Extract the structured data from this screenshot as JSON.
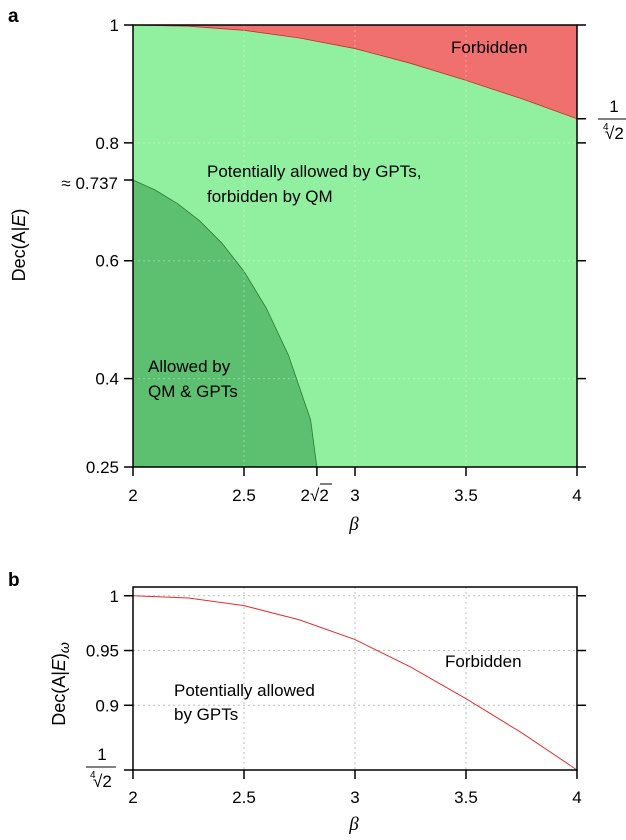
{
  "chart_data": [
    {
      "panel": "a",
      "type": "area",
      "xlabel_symbol": "β",
      "ylabel_main": "Dec(A|",
      "ylabel_var": "E",
      "ylabel_close": ")",
      "xlim": [
        2,
        4
      ],
      "ylim": [
        0.25,
        1
      ],
      "xticks": [
        2,
        2.5,
        3,
        3.5,
        4
      ],
      "xtick_labels": [
        "2",
        "2.5",
        "3",
        "3.5",
        "4"
      ],
      "extra_xtick": {
        "value": 2.8284,
        "label_prefix": "2",
        "label_sqrt": "√2"
      },
      "yticks": [
        0.25,
        0.4,
        0.6,
        0.8,
        1
      ],
      "ytick_labels": [
        "0.25",
        "0.4",
        "0.6",
        "0.8",
        "1"
      ],
      "extra_ytick": {
        "value": 0.737,
        "label": "≈ 0.737"
      },
      "right_annotation": {
        "value": 0.8409,
        "numerator": "1",
        "root_index": "4",
        "denominator": "√2"
      },
      "regions": [
        {
          "name": "Forbidden",
          "label_lines": [
            "Forbidden"
          ],
          "color": "#f07070"
        },
        {
          "name": "Potentially allowed by GPTs, forbidden by QM",
          "label_lines": [
            "Potentially allowed by GPTs,",
            "forbidden by QM"
          ],
          "color": "#90f0a0"
        },
        {
          "name": "Allowed by QM & GPTs",
          "label_lines": [
            "Allowed by",
            "QM & GPTs"
          ],
          "color": "#5cc070"
        }
      ],
      "gpt_boundary": {
        "x": [
          2,
          2.25,
          2.5,
          2.75,
          3,
          3.25,
          3.5,
          3.75,
          4
        ],
        "y": [
          1,
          0.998,
          0.991,
          0.978,
          0.96,
          0.935,
          0.906,
          0.875,
          0.8409
        ]
      },
      "qm_boundary": {
        "x": [
          2,
          2.1,
          2.2,
          2.3,
          2.4,
          2.5,
          2.6,
          2.7,
          2.8,
          2.8284
        ],
        "y": [
          0.737,
          0.72,
          0.697,
          0.668,
          0.63,
          0.582,
          0.52,
          0.44,
          0.33,
          0.25
        ]
      }
    },
    {
      "panel": "b",
      "type": "line",
      "xlabel_symbol": "β",
      "ylabel_main": "Dec(A|",
      "ylabel_var": "E",
      "ylabel_close": ")",
      "ylabel_sub": "ω",
      "xlim": [
        2,
        4
      ],
      "ylim": [
        0.8409,
        1.008
      ],
      "xticks": [
        2,
        2.5,
        3,
        3.5,
        4
      ],
      "xtick_labels": [
        "2",
        "2.5",
        "3",
        "3.5",
        "4"
      ],
      "yticks": [
        0.9,
        0.95,
        1
      ],
      "ytick_labels": [
        "0.9",
        "0.95",
        "1"
      ],
      "bottom_ytick": {
        "value": 0.8409,
        "numerator": "1",
        "root_index": "4",
        "denominator": "√2"
      },
      "grid": true,
      "series": [
        {
          "color": "#e03030",
          "x": [
            2,
            2.25,
            2.5,
            2.75,
            3,
            3.25,
            3.5,
            3.75,
            4
          ],
          "y": [
            1,
            0.998,
            0.991,
            0.978,
            0.96,
            0.935,
            0.906,
            0.875,
            0.8409
          ]
        }
      ],
      "annotations": [
        {
          "label_lines": [
            "Forbidden"
          ]
        },
        {
          "label_lines": [
            "Potentially allowed",
            "by GPTs"
          ]
        }
      ]
    }
  ]
}
